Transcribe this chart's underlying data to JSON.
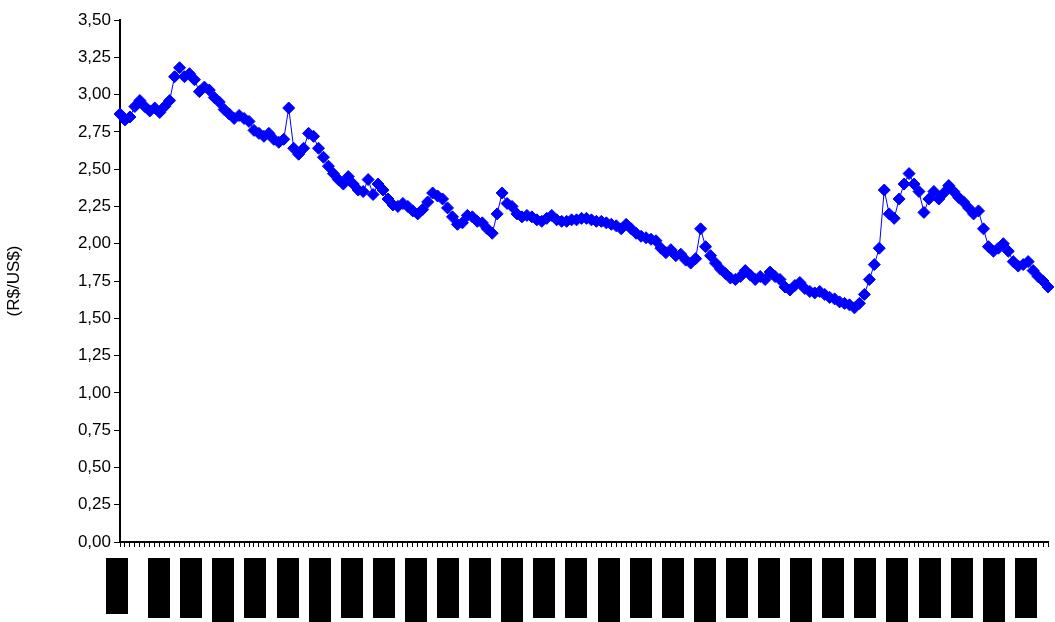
{
  "chart_data": {
    "type": "line",
    "ylabel": "(R$/US$)",
    "marker": "diamond",
    "line_style": "solid",
    "grid": false,
    "legend": false,
    "tick_labels": "y",
    "ylim": [
      0,
      3.5
    ],
    "yticks": [
      {
        "value": 0,
        "label": "0,00"
      },
      {
        "value": 0.25,
        "label": "0,25"
      },
      {
        "value": 0.5,
        "label": "0,50"
      },
      {
        "value": 0.75,
        "label": "0,75"
      },
      {
        "value": 1,
        "label": "1,00"
      },
      {
        "value": 1.25,
        "label": "1,25"
      },
      {
        "value": 1.5,
        "label": "1,50"
      },
      {
        "value": 1.75,
        "label": "1,75"
      },
      {
        "value": 2,
        "label": "2,00"
      },
      {
        "value": 2.25,
        "label": "2,25"
      },
      {
        "value": 2.5,
        "label": "2,50"
      },
      {
        "value": 2.75,
        "label": "2,75"
      },
      {
        "value": 3,
        "label": "3,00"
      },
      {
        "value": 3.25,
        "label": "3,25"
      },
      {
        "value": 3.5,
        "label": "3,50"
      }
    ],
    "categories": [
      null,
      null,
      null,
      null,
      null,
      null,
      null,
      null,
      null,
      null,
      null,
      null,
      null,
      null,
      null,
      null,
      null,
      null,
      null,
      null,
      null,
      null,
      null,
      null,
      null,
      null,
      null,
      null,
      null,
      null,
      null,
      null,
      null,
      null,
      null,
      null,
      null,
      null,
      null,
      null,
      null,
      null,
      null,
      null,
      null,
      null,
      null,
      null,
      null,
      null,
      null,
      null,
      null,
      null,
      null,
      null,
      null,
      null,
      null,
      null,
      null,
      null,
      null,
      null,
      null,
      null,
      null,
      null,
      null,
      null,
      null,
      null,
      null,
      null,
      null,
      null,
      null,
      null,
      null,
      null,
      null,
      null,
      null,
      null,
      null,
      null,
      null,
      null,
      null,
      null,
      null,
      null,
      null,
      null,
      null,
      null,
      null,
      null,
      null,
      null,
      null,
      null,
      null,
      null,
      null,
      null,
      null,
      null,
      null,
      null,
      null,
      null,
      null,
      null,
      null,
      null,
      null,
      null,
      null,
      null,
      null,
      null,
      null,
      null,
      null,
      null,
      null,
      null,
      null,
      null,
      null,
      null,
      null,
      null,
      null,
      null,
      null,
      null,
      null,
      null,
      null,
      null,
      null,
      null,
      null,
      null,
      null,
      null,
      null,
      null,
      null,
      null,
      null,
      null,
      null,
      null,
      null,
      null,
      null,
      null,
      null,
      null,
      null,
      null,
      null,
      null,
      null,
      null,
      null,
      null,
      null,
      null,
      null,
      null,
      null,
      null,
      null,
      null,
      null,
      null,
      null,
      null,
      null,
      null,
      null,
      null,
      null,
      null
    ],
    "series": [
      {
        "color": "#0000ff",
        "values": [
          2.87,
          2.83,
          2.85,
          2.92,
          2.96,
          2.92,
          2.89,
          2.91,
          2.88,
          2.92,
          2.96,
          3.12,
          3.18,
          3.12,
          3.14,
          3.1,
          3.02,
          3.05,
          3.03,
          2.98,
          2.95,
          2.9,
          2.87,
          2.84,
          2.86,
          2.84,
          2.82,
          2.76,
          2.74,
          2.72,
          2.74,
          2.7,
          2.68,
          2.7,
          2.91,
          2.64,
          2.6,
          2.64,
          2.74,
          2.72,
          2.64,
          2.58,
          2.52,
          2.47,
          2.43,
          2.4,
          2.45,
          2.4,
          2.36,
          2.35,
          2.43,
          2.33,
          2.4,
          2.36,
          2.3,
          2.26,
          2.25,
          2.27,
          2.25,
          2.22,
          2.2,
          2.23,
          2.28,
          2.34,
          2.32,
          2.3,
          2.24,
          2.18,
          2.13,
          2.14,
          2.19,
          2.18,
          2.15,
          2.14,
          2.1,
          2.07,
          2.2,
          2.34,
          2.27,
          2.25,
          2.2,
          2.18,
          2.19,
          2.18,
          2.16,
          2.15,
          2.17,
          2.19,
          2.16,
          2.15,
          2.15,
          2.16,
          2.16,
          2.17,
          2.17,
          2.16,
          2.15,
          2.15,
          2.14,
          2.13,
          2.12,
          2.1,
          2.13,
          2.1,
          2.07,
          2.05,
          2.04,
          2.03,
          2.02,
          1.97,
          1.94,
          1.96,
          1.92,
          1.93,
          1.89,
          1.87,
          1.9,
          2.1,
          1.98,
          1.92,
          1.87,
          1.83,
          1.8,
          1.77,
          1.76,
          1.78,
          1.82,
          1.79,
          1.76,
          1.78,
          1.76,
          1.81,
          1.78,
          1.76,
          1.71,
          1.69,
          1.72,
          1.74,
          1.7,
          1.68,
          1.67,
          1.68,
          1.66,
          1.64,
          1.63,
          1.61,
          1.6,
          1.59,
          1.57,
          1.6,
          1.66,
          1.76,
          1.86,
          1.97,
          2.36,
          2.2,
          2.17,
          2.3,
          2.4,
          2.47,
          2.4,
          2.35,
          2.21,
          2.3,
          2.35,
          2.3,
          2.34,
          2.39,
          2.35,
          2.31,
          2.28,
          2.24,
          2.2,
          2.22,
          2.1,
          1.98,
          1.95,
          1.97,
          2.0,
          1.95,
          1.88,
          1.85,
          1.86,
          1.88,
          1.82,
          1.78,
          1.75,
          1.71
        ]
      }
    ]
  }
}
